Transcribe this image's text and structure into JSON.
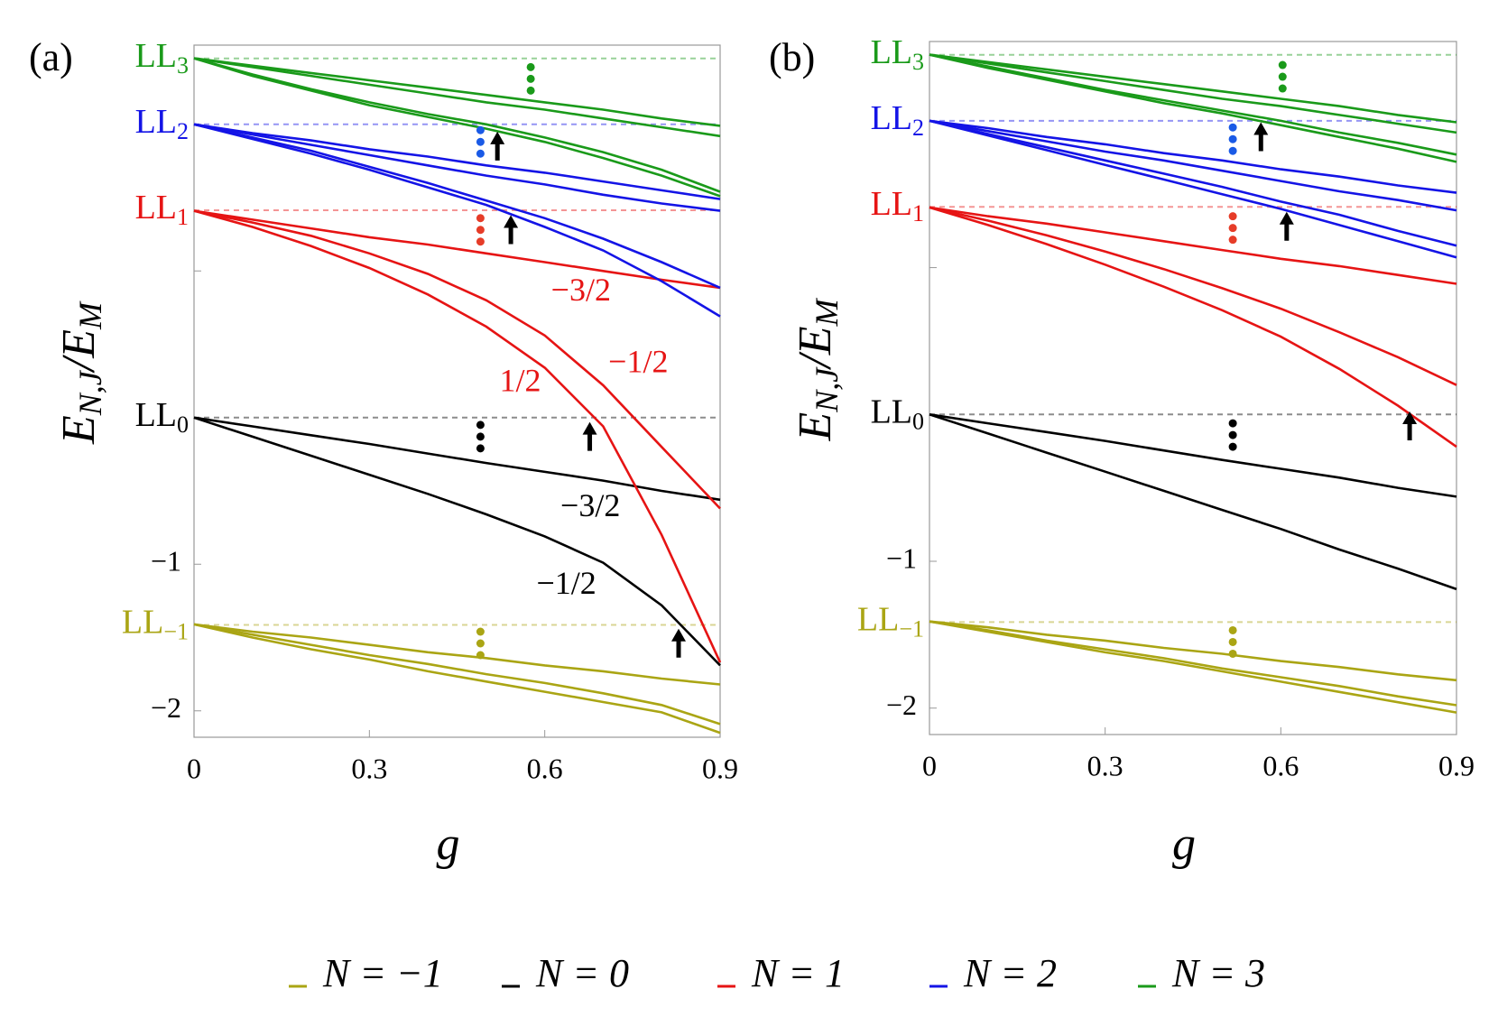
{
  "chart_data": [
    {
      "type": "line",
      "label": "(a)",
      "xlabel": "g",
      "ylabel": [
        "E",
        "N,J",
        "/E",
        "M"
      ],
      "xlim": [
        0,
        0.9
      ],
      "ylim": [
        -2.18,
        2.54
      ],
      "xticks": [
        0,
        0.3,
        0.6,
        0.9
      ],
      "yticks": [
        {
          "value": -2,
          "label": "−2"
        },
        {
          "value": -1,
          "label": "−1"
        }
      ],
      "minor_yticks": [
        0,
        1,
        2
      ],
      "x": [
        0,
        0.1,
        0.2,
        0.3,
        0.4,
        0.5,
        0.6,
        0.7,
        0.8,
        0.9
      ],
      "levels": [
        {
          "label": "LL",
          "sub": "3",
          "value": 2.449,
          "color": "#1a9a1a"
        },
        {
          "label": "LL",
          "sub": "2",
          "value": 2.0,
          "color": "#1414e6"
        },
        {
          "label": "LL",
          "sub": "1",
          "value": 1.414,
          "color": "#e61414"
        },
        {
          "label": "LL",
          "sub": "0",
          "value": 0,
          "color": "#000000"
        },
        {
          "label": "LL",
          "sub": "−1",
          "value": -1.414,
          "color": "#aaa514"
        }
      ],
      "series": [
        {
          "name": "N = −1",
          "color": "#aaa514",
          "lines": [
            [
              -1.41,
              -1.46,
              -1.5,
              -1.55,
              -1.6,
              -1.64,
              -1.69,
              -1.73,
              -1.78,
              -1.82
            ],
            [
              -1.41,
              -1.48,
              -1.55,
              -1.62,
              -1.68,
              -1.75,
              -1.81,
              -1.88,
              -1.96,
              -2.09
            ],
            [
              -1.41,
              -1.5,
              -1.58,
              -1.65,
              -1.73,
              -1.8,
              -1.87,
              -1.94,
              -2.01,
              -2.15
            ]
          ]
        },
        {
          "name": "N = 0",
          "color": "#000000",
          "lines": [
            [
              0,
              -0.06,
              -0.12,
              -0.18,
              -0.245,
              -0.31,
              -0.37,
              -0.43,
              -0.5,
              -0.56
            ],
            [
              0,
              -0.13,
              -0.26,
              -0.39,
              -0.52,
              -0.66,
              -0.81,
              -0.99,
              -1.28,
              -1.69
            ]
          ]
        },
        {
          "name": "N = 1",
          "color": "#e61414",
          "lines": [
            [
              1.41,
              1.35,
              1.29,
              1.23,
              1.18,
              1.12,
              1.06,
              1.0,
              0.94,
              0.885
            ],
            [
              1.41,
              1.33,
              1.24,
              1.12,
              0.98,
              0.8,
              0.56,
              0.22,
              -0.2,
              -0.62
            ],
            [
              1.41,
              1.3,
              1.17,
              1.02,
              0.84,
              0.62,
              0.34,
              -0.06,
              -0.8,
              -1.67
            ]
          ]
        },
        {
          "name": "N = 2",
          "color": "#1414e6",
          "lines": [
            [
              2.0,
              1.94,
              1.89,
              1.83,
              1.78,
              1.72,
              1.67,
              1.61,
              1.55,
              1.49
            ],
            [
              2.0,
              1.93,
              1.86,
              1.79,
              1.72,
              1.65,
              1.59,
              1.52,
              1.46,
              1.41
            ],
            [
              2.0,
              1.91,
              1.82,
              1.71,
              1.6,
              1.48,
              1.36,
              1.22,
              1.06,
              0.885
            ],
            [
              2.0,
              1.9,
              1.8,
              1.69,
              1.57,
              1.45,
              1.3,
              1.14,
              0.93,
              0.69
            ]
          ]
        },
        {
          "name": "N = 3",
          "color": "#1a9a1a",
          "lines": [
            [
              2.45,
              2.4,
              2.35,
              2.3,
              2.25,
              2.2,
              2.15,
              2.1,
              2.04,
              1.99
            ],
            [
              2.45,
              2.39,
              2.33,
              2.27,
              2.21,
              2.15,
              2.1,
              2.04,
              1.98,
              1.92
            ],
            [
              2.45,
              2.34,
              2.24,
              2.15,
              2.07,
              2.0,
              1.91,
              1.81,
              1.69,
              1.54
            ],
            [
              2.45,
              2.33,
              2.23,
              2.13,
              2.05,
              1.97,
              1.88,
              1.77,
              1.65,
              1.51
            ]
          ]
        }
      ],
      "annotations": [
        {
          "text": "−3/2",
          "x": 0.662,
          "y": 0.85,
          "color": "#e61414"
        },
        {
          "text": "1/2",
          "x": 0.558,
          "y": 0.23,
          "color": "#e61414"
        },
        {
          "text": "−1/2",
          "x": 0.76,
          "y": 0.36,
          "color": "#e61414"
        },
        {
          "text": "−3/2",
          "x": 0.678,
          "y": -0.62,
          "color": "#000000"
        },
        {
          "text": "−1/2",
          "x": 0.637,
          "y": -1.15,
          "color": "#000000"
        }
      ],
      "dots": [
        {
          "x": 0.576,
          "y": 2.31,
          "color": "#1a9a1a"
        },
        {
          "x": 0.49,
          "y": 1.88,
          "color": "#1a5ae6"
        },
        {
          "x": 0.49,
          "y": 1.28,
          "color": "#e63c28"
        },
        {
          "x": 0.49,
          "y": -0.13,
          "color": "#000000"
        },
        {
          "x": 0.49,
          "y": -1.54,
          "color": "#aaa514"
        }
      ],
      "arrows": [
        {
          "x": 0.519,
          "y": 1.95
        },
        {
          "x": 0.542,
          "y": 1.38
        },
        {
          "x": 0.677,
          "y": -0.03
        },
        {
          "x": 0.829,
          "y": -1.44
        }
      ]
    },
    {
      "type": "line",
      "label": "(b)",
      "xlabel": "g",
      "ylabel": [
        "E",
        "N,J",
        "/E",
        "M"
      ],
      "xlim": [
        0,
        0.9
      ],
      "ylim": [
        -2.18,
        2.54
      ],
      "xticks": [
        0,
        0.3,
        0.6,
        0.9
      ],
      "yticks": [
        {
          "value": -2,
          "label": "−2"
        },
        {
          "value": -1,
          "label": "−1"
        }
      ],
      "minor_yticks": [
        0,
        1,
        2
      ],
      "x": [
        0,
        0.1,
        0.2,
        0.3,
        0.4,
        0.5,
        0.6,
        0.7,
        0.8,
        0.9
      ],
      "levels": [
        {
          "label": "LL",
          "sub": "3",
          "value": 2.449,
          "color": "#1a9a1a"
        },
        {
          "label": "LL",
          "sub": "2",
          "value": 2.0,
          "color": "#1414e6"
        },
        {
          "label": "LL",
          "sub": "1",
          "value": 1.414,
          "color": "#e61414"
        },
        {
          "label": "LL",
          "sub": "0",
          "value": 0,
          "color": "#000000"
        },
        {
          "label": "LL",
          "sub": "−1",
          "value": -1.414,
          "color": "#aaa514"
        }
      ],
      "series": [
        {
          "color": "#aaa514",
          "lines": [
            [
              -1.41,
              -1.45,
              -1.5,
              -1.54,
              -1.59,
              -1.63,
              -1.68,
              -1.72,
              -1.77,
              -1.81
            ],
            [
              -1.41,
              -1.47,
              -1.54,
              -1.6,
              -1.66,
              -1.73,
              -1.79,
              -1.85,
              -1.92,
              -1.98
            ],
            [
              -1.41,
              -1.48,
              -1.55,
              -1.62,
              -1.68,
              -1.75,
              -1.82,
              -1.89,
              -1.96,
              -2.03
            ]
          ]
        },
        {
          "color": "#000000",
          "lines": [
            [
              0,
              -0.06,
              -0.12,
              -0.18,
              -0.245,
              -0.31,
              -0.37,
              -0.43,
              -0.5,
              -0.56
            ],
            [
              0,
              -0.13,
              -0.26,
              -0.39,
              -0.52,
              -0.65,
              -0.78,
              -0.92,
              -1.05,
              -1.19
            ]
          ]
        },
        {
          "color": "#e61414",
          "lines": [
            [
              1.41,
              1.35,
              1.3,
              1.24,
              1.18,
              1.12,
              1.06,
              1.01,
              0.95,
              0.89
            ],
            [
              1.41,
              1.32,
              1.22,
              1.11,
              0.99,
              0.86,
              0.72,
              0.56,
              0.39,
              0.2
            ],
            [
              1.41,
              1.29,
              1.16,
              1.02,
              0.87,
              0.71,
              0.53,
              0.31,
              0.06,
              -0.22
            ]
          ]
        },
        {
          "color": "#1414e6",
          "lines": [
            [
              2.0,
              1.95,
              1.89,
              1.84,
              1.78,
              1.73,
              1.67,
              1.62,
              1.56,
              1.51
            ],
            [
              2.0,
              1.93,
              1.86,
              1.79,
              1.73,
              1.66,
              1.59,
              1.52,
              1.46,
              1.39
            ],
            [
              2.0,
              1.91,
              1.82,
              1.73,
              1.64,
              1.55,
              1.45,
              1.36,
              1.25,
              1.15
            ],
            [
              2.0,
              1.9,
              1.8,
              1.7,
              1.6,
              1.5,
              1.4,
              1.29,
              1.18,
              1.07
            ]
          ]
        },
        {
          "color": "#1a9a1a",
          "lines": [
            [
              2.45,
              2.4,
              2.35,
              2.3,
              2.25,
              2.2,
              2.15,
              2.1,
              2.04,
              1.99
            ],
            [
              2.45,
              2.39,
              2.33,
              2.27,
              2.21,
              2.15,
              2.1,
              2.04,
              1.98,
              1.92
            ],
            [
              2.45,
              2.37,
              2.29,
              2.21,
              2.14,
              2.07,
              2.0,
              1.92,
              1.85,
              1.77
            ],
            [
              2.45,
              2.36,
              2.28,
              2.2,
              2.12,
              2.05,
              1.97,
              1.89,
              1.81,
              1.72
            ]
          ]
        }
      ],
      "dots": [
        {
          "x": 0.603,
          "y": 2.3,
          "color": "#1a9a1a"
        },
        {
          "x": 0.518,
          "y": 1.875,
          "color": "#1a5ae6"
        },
        {
          "x": 0.518,
          "y": 1.27,
          "color": "#e63c28"
        },
        {
          "x": 0.518,
          "y": -0.14,
          "color": "#000000"
        },
        {
          "x": 0.518,
          "y": -1.55,
          "color": "#aaa514"
        }
      ],
      "arrows": [
        {
          "x": 0.566,
          "y": 1.99
        },
        {
          "x": 0.61,
          "y": 1.38
        },
        {
          "x": 0.82,
          "y": 0.02
        }
      ]
    }
  ]
}
